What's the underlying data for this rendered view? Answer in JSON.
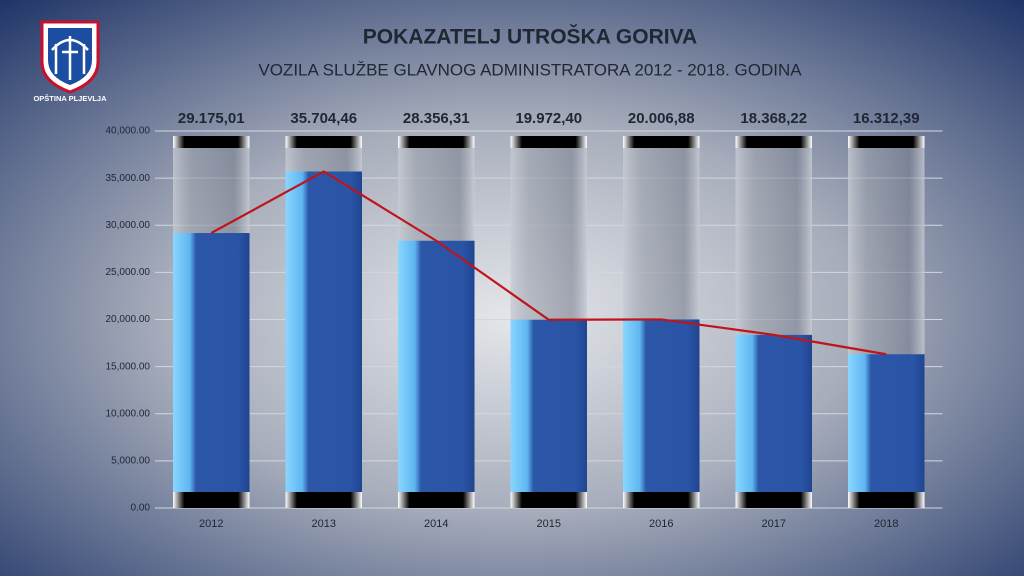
{
  "logo": {
    "text": "OPŠTINA PLJEVLJA"
  },
  "chart_data": {
    "type": "bar",
    "title": "POKAZATELJ UTROŠKA GORIVA",
    "subtitle": "VOZILA SLUŽBE GLAVNOG ADMINISTRATORA 2012 - 2018. GODINA",
    "categories": [
      "2012",
      "2013",
      "2014",
      "2015",
      "2016",
      "2017",
      "2018"
    ],
    "values": [
      29175.01,
      35704.46,
      28356.31,
      19972.4,
      20006.88,
      18368.22,
      16312.39
    ],
    "value_labels": [
      "29.175,01",
      "35.704,46",
      "28.356,31",
      "19.972,40",
      "20.006,88",
      "18.368,22",
      "16.312,39"
    ],
    "color": "#2c57a9",
    "line_color": "#c0141b",
    "ylim": [
      0,
      40000
    ],
    "yticks": [
      {
        "value": 0,
        "label": "0.00"
      },
      {
        "value": 5000,
        "label": "5,000.00"
      },
      {
        "value": 10000,
        "label": "10,000.00"
      },
      {
        "value": 15000,
        "label": "15,000.00"
      },
      {
        "value": 20000,
        "label": "20,000.00"
      },
      {
        "value": 25000,
        "label": "25,000.00"
      },
      {
        "value": 30000,
        "label": "30,000.00"
      },
      {
        "value": 35000,
        "label": "35,000.00"
      },
      {
        "value": 40000,
        "label": "40,000.00"
      }
    ],
    "grid": true
  }
}
